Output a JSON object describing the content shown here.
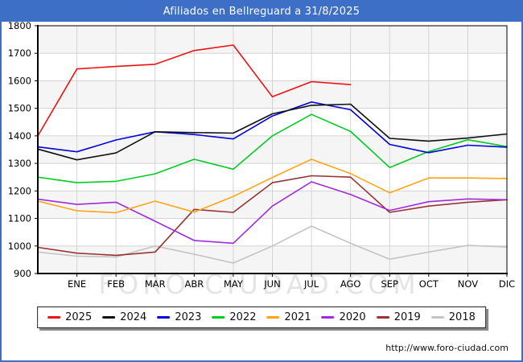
{
  "window": {
    "title": "Afiliados en Bellreguard a 31/8/2025"
  },
  "watermark": "FORO-CIUDAD.COM",
  "footer": {
    "url": "http://www.foro-ciudad.com"
  },
  "axes": {
    "y_ticks": [
      1800,
      1700,
      1600,
      1500,
      1400,
      1300,
      1200,
      1100,
      1000,
      900
    ]
  },
  "chart_data": {
    "type": "line",
    "title": "Afiliados en Bellreguard a 31/8/2025",
    "categories": [
      "ENE",
      "FEB",
      "MAR",
      "ABR",
      "MAY",
      "JUN",
      "JUL",
      "AGO",
      "SEP",
      "OCT",
      "NOV",
      "DIC"
    ],
    "ylim": [
      900,
      1800
    ],
    "ytick_step": 100,
    "grid": true,
    "legend_position": "bottom",
    "note": "first point of each series sits on the y-axis before ENE",
    "series": [
      {
        "name": "2025",
        "color": "#ee1111",
        "start": 1400,
        "values": [
          1643,
          1652,
          1660,
          1710,
          1730,
          1542,
          1597,
          1586
        ]
      },
      {
        "name": "2024",
        "color": "#111111",
        "start": 1352,
        "values": [
          1313,
          1338,
          1415,
          1412,
          1410,
          1480,
          1511,
          1515,
          1391,
          1381,
          1392,
          1407
        ]
      },
      {
        "name": "2023",
        "color": "#0000dd",
        "start": 1360,
        "values": [
          1342,
          1385,
          1415,
          1405,
          1389,
          1472,
          1523,
          1495,
          1369,
          1339,
          1366,
          1359
        ]
      },
      {
        "name": "2022",
        "color": "#00cc22",
        "start": 1250,
        "values": [
          1230,
          1235,
          1262,
          1315,
          1279,
          1400,
          1478,
          1416,
          1285,
          1343,
          1386,
          1361
        ]
      },
      {
        "name": "2021",
        "color": "#ffa417",
        "start": 1163,
        "values": [
          1128,
          1121,
          1163,
          1123,
          1180,
          1249,
          1315,
          1263,
          1193,
          1247,
          1247,
          1245
        ]
      },
      {
        "name": "2020",
        "color": "#a02ae0",
        "start": 1170,
        "values": [
          1151,
          1159,
          1090,
          1020,
          1010,
          1145,
          1233,
          1187,
          1129,
          1161,
          1171,
          1168
        ]
      },
      {
        "name": "2019",
        "color": "#993333",
        "start": 995,
        "values": [
          974,
          966,
          978,
          1133,
          1122,
          1230,
          1255,
          1250,
          1122,
          1145,
          1159,
          1168
        ]
      },
      {
        "name": "2018",
        "color": "#c4c4c4",
        "start": 978,
        "values": [
          963,
          960,
          1000,
          970,
          938,
          1000,
          1072,
          1010,
          952,
          978,
          1002,
          996
        ]
      }
    ]
  }
}
